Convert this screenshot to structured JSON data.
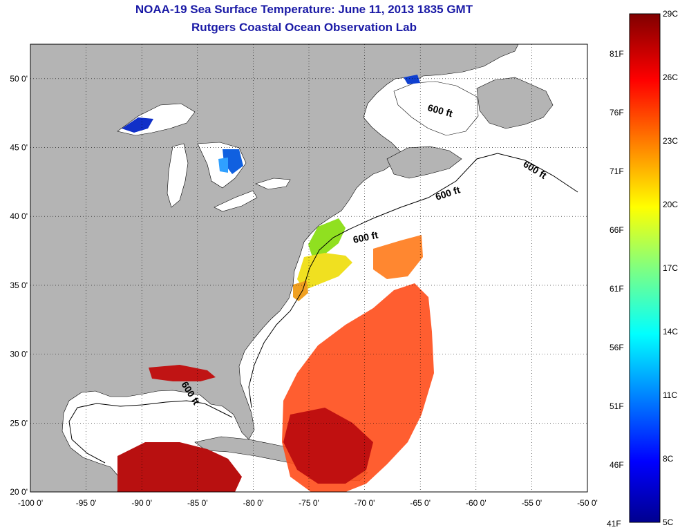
{
  "title": {
    "line1": "NOAA-19 Sea Surface Temperature:  June 11, 2013 1835 GMT",
    "line2": "Rutgers Coastal Ocean Observation Lab"
  },
  "map": {
    "lon_range": [
      -100,
      -50
    ],
    "lat_range": [
      20,
      52.5
    ],
    "lon_ticks": [
      "-100 0'",
      "-95 0'",
      "-90 0'",
      "-85 0'",
      "-80 0'",
      "-75 0'",
      "-70 0'",
      "-65 0'",
      "-60 0'",
      "-55 0'",
      "-50 0'"
    ],
    "lat_ticks": [
      "20 0'",
      "25 0'",
      "30 0'",
      "35 0'",
      "40 0'",
      "45 0'",
      "50 0'"
    ],
    "grid": "dotted",
    "land_color": "#b4b4b4",
    "water_color": "#ffffff",
    "contour_labels": [
      "600 ft",
      "600 ft",
      "600 ft",
      "600 ft",
      "600 ft"
    ]
  },
  "colorbar": {
    "celsius_labels": [
      "29C",
      "26C",
      "23C",
      "20C",
      "17C",
      "14C",
      "11C",
      "8C",
      "5C"
    ],
    "fahrenheit_labels": [
      "81F",
      "76F",
      "71F",
      "66F",
      "61F",
      "56F",
      "51F",
      "46F",
      "41F"
    ],
    "range_c": [
      5,
      29
    ]
  }
}
